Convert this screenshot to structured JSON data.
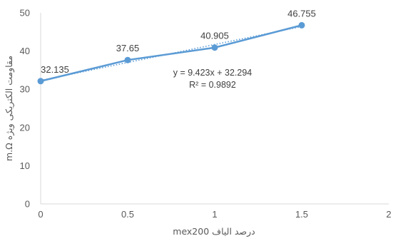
{
  "chart_data": {
    "type": "scatter",
    "x": [
      0,
      0.5,
      1,
      1.5
    ],
    "y": [
      32.135,
      37.65,
      40.905,
      46.755
    ],
    "data_labels": [
      "32.135",
      "37.65",
      "40.905",
      "46.755"
    ],
    "xlim": [
      0,
      2
    ],
    "ylim": [
      0,
      50
    ],
    "x_ticks": [
      0,
      0.5,
      1,
      1.5,
      2
    ],
    "y_ticks": [
      0,
      10,
      20,
      30,
      40,
      50
    ],
    "x_tick_labels": [
      "0",
      "0.5",
      "1",
      "1.5",
      "2"
    ],
    "y_tick_labels": [
      "0",
      "10",
      "20",
      "30",
      "40",
      "50"
    ],
    "xlabel": "درصد الیاف mex200",
    "ylabel": "مقاومت الکتریکی ویژه m.Ω",
    "trendline": {
      "type": "linear",
      "slope": 9.423,
      "intercept": 32.294,
      "equation": "y = 9.423x + 32.294",
      "r_squared": "R² = 0.9892"
    },
    "series_color": "#5B9BD5",
    "trendline_color": "#5B9BD5",
    "grid": false,
    "legend": "none"
  }
}
